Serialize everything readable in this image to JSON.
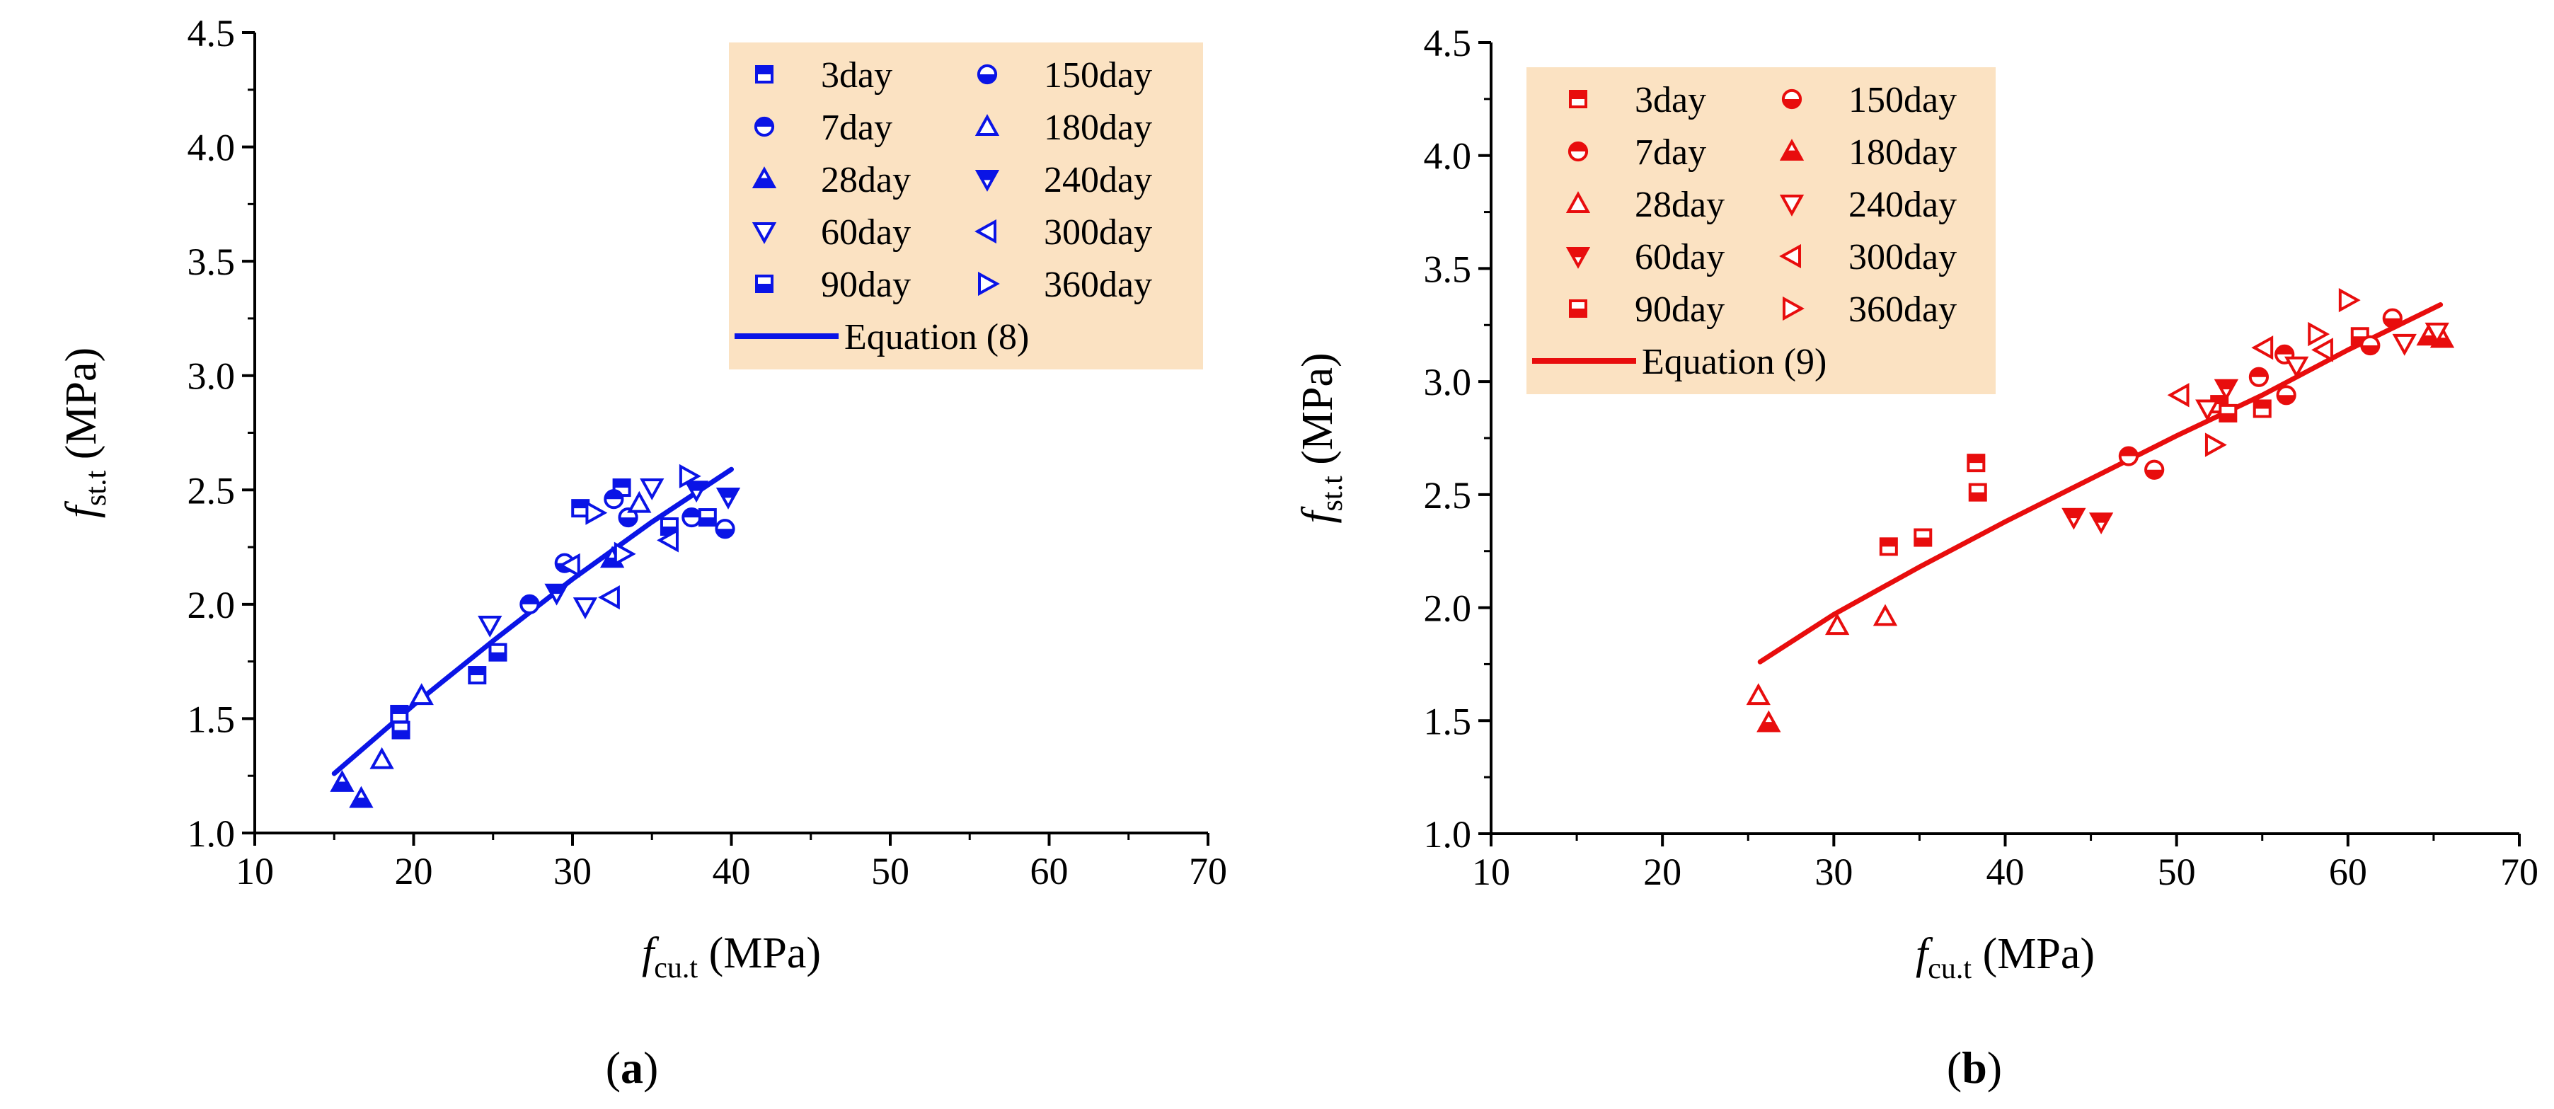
{
  "figure": {
    "panels": [
      {
        "open": "(",
        "letter": "a",
        "close": ")"
      },
      {
        "open": "(",
        "letter": "b",
        "close": ")"
      }
    ]
  },
  "colors": {
    "a": "#0a14e6",
    "b": "#e80d0d",
    "legend_bg": "#fbe2c2"
  },
  "chart_data": [
    {
      "type": "scatter",
      "panel": "a",
      "title": "",
      "xlabel": {
        "main": "f",
        "sub": "cu.t",
        "unit": " (MPa)"
      },
      "ylabel": {
        "main": "f",
        "sub": "st.t",
        "unit": " (MPa)"
      },
      "xlim": [
        10,
        70
      ],
      "ylim": [
        1.0,
        4.5
      ],
      "xticks": [
        10,
        20,
        30,
        40,
        50,
        60,
        70
      ],
      "yticks": [
        1.0,
        1.5,
        2.0,
        2.5,
        3.0,
        3.5,
        4.0,
        4.5
      ],
      "xtick_labels": [
        "10",
        "20",
        "30",
        "40",
        "50",
        "60",
        "70"
      ],
      "ytick_labels": [
        "1.0",
        "1.5",
        "2.0",
        "2.5",
        "3.0",
        "3.5",
        "4.0",
        "4.5"
      ],
      "legend_position": "top-right",
      "series": [
        {
          "name": "3day",
          "marker": "square-top",
          "x": [
            19.1,
            24.0,
            30.5,
            33.1
          ],
          "y": [
            1.52,
            1.69,
            2.42,
            2.51
          ]
        },
        {
          "name": "7day",
          "marker": "circle-top",
          "x": [
            27.3,
            32.6,
            37.5
          ],
          "y": [
            2.0,
            2.46,
            2.38
          ]
        },
        {
          "name": "28day",
          "marker": "triangle-up-filled",
          "x": [
            15.5,
            16.7,
            32.5
          ],
          "y": [
            1.22,
            1.15,
            2.2
          ]
        },
        {
          "name": "60day",
          "marker": "triangle-down-open",
          "x": [
            24.8,
            30.8,
            35.0
          ],
          "y": [
            1.91,
            1.99,
            2.51
          ]
        },
        {
          "name": "90day",
          "marker": "square-bottom",
          "x": [
            19.2,
            25.3,
            36.1,
            38.5
          ],
          "y": [
            1.45,
            1.79,
            2.34,
            2.38
          ]
        },
        {
          "name": "150day",
          "marker": "circle-bottom",
          "x": [
            29.5,
            33.5,
            39.6
          ],
          "y": [
            2.18,
            2.38,
            2.33
          ]
        },
        {
          "name": "180day",
          "marker": "triangle-up-open",
          "x": [
            18.0,
            20.5,
            34.2
          ],
          "y": [
            1.32,
            1.6,
            2.44
          ]
        },
        {
          "name": "240day",
          "marker": "triangle-down-filled",
          "x": [
            29.0,
            39.8,
            37.8
          ],
          "y": [
            2.05,
            2.47,
            2.5
          ]
        },
        {
          "name": "300day",
          "marker": "triangle-left-open",
          "x": [
            29.9,
            32.4,
            36.1
          ],
          "y": [
            2.17,
            2.03,
            2.28
          ]
        },
        {
          "name": "360day",
          "marker": "triangle-right-open",
          "x": [
            31.4,
            33.2,
            37.3
          ],
          "y": [
            2.4,
            2.22,
            2.56
          ]
        }
      ],
      "fit": {
        "name": "Equation (8)",
        "x": [
          15.0,
          20.0,
          25.0,
          30.0,
          35.0,
          40.0
        ],
        "y": [
          1.26,
          1.56,
          1.84,
          2.11,
          2.36,
          2.59
        ]
      }
    },
    {
      "type": "scatter",
      "panel": "b",
      "title": "",
      "xlabel": {
        "main": "f",
        "sub": "cu.t",
        "unit": " (MPa)"
      },
      "ylabel": {
        "main": "f",
        "sub": "st.t",
        "unit": " (MPa)"
      },
      "xlim": [
        10,
        70
      ],
      "ylim": [
        1.0,
        4.5
      ],
      "xticks": [
        10,
        20,
        30,
        40,
        50,
        60,
        70
      ],
      "yticks": [
        1.0,
        1.5,
        2.0,
        2.5,
        3.0,
        3.5,
        4.0,
        4.5
      ],
      "xtick_labels": [
        "10",
        "20",
        "30",
        "40",
        "50",
        "60",
        "70"
      ],
      "ytick_labels": [
        "1.0",
        "1.5",
        "2.0",
        "2.5",
        "3.0",
        "3.5",
        "4.0",
        "4.5"
      ],
      "legend_position": "top-left",
      "series": [
        {
          "name": "3day",
          "marker": "square-top",
          "x": [
            33.2,
            38.3,
            52.5,
            55.0
          ],
          "y": [
            2.27,
            2.64,
            2.9,
            2.88
          ]
        },
        {
          "name": "7day",
          "marker": "circle-top",
          "x": [
            47.2,
            54.8,
            56.3
          ],
          "y": [
            2.67,
            3.02,
            3.12
          ]
        },
        {
          "name": "28day",
          "marker": "triangle-up-open",
          "x": [
            30.2,
            33.0,
            25.6
          ],
          "y": [
            1.92,
            1.96,
            1.61
          ]
        },
        {
          "name": "60day",
          "marker": "triangle-down-filled",
          "x": [
            44.0,
            45.6,
            52.9
          ],
          "y": [
            2.4,
            2.38,
            2.97
          ]
        },
        {
          "name": "90day",
          "marker": "square-bottom",
          "x": [
            35.2,
            38.4,
            53.0,
            60.7
          ],
          "y": [
            2.31,
            2.51,
            2.86,
            3.2
          ]
        },
        {
          "name": "150day",
          "marker": "circle-bottom",
          "x": [
            48.7,
            56.4,
            61.3,
            62.6
          ],
          "y": [
            2.61,
            2.94,
            3.16,
            3.28
          ]
        },
        {
          "name": "180day",
          "marker": "triangle-up-filled",
          "x": [
            26.2,
            64.7,
            65.5
          ],
          "y": [
            1.49,
            3.2,
            3.19
          ]
        },
        {
          "name": "240day",
          "marker": "triangle-down-open",
          "x": [
            51.8,
            57.0,
            63.3,
            65.2
          ],
          "y": [
            2.88,
            3.07,
            3.17,
            3.22
          ]
        },
        {
          "name": "300day",
          "marker": "triangle-left-open",
          "x": [
            50.2,
            55.1,
            58.6
          ],
          "y": [
            2.94,
            3.15,
            3.14
          ]
        },
        {
          "name": "360day",
          "marker": "triangle-right-open",
          "x": [
            52.2,
            58.2,
            60.0
          ],
          "y": [
            2.72,
            3.21,
            3.36
          ]
        }
      ],
      "fit": {
        "name": "Equation (9)",
        "x": [
          25.7,
          30.0,
          35.0,
          40.0,
          45.0,
          50.0,
          55.0,
          60.0,
          65.4
        ],
        "y": [
          1.76,
          1.97,
          2.18,
          2.38,
          2.57,
          2.76,
          2.94,
          3.14,
          3.34
        ]
      }
    }
  ]
}
